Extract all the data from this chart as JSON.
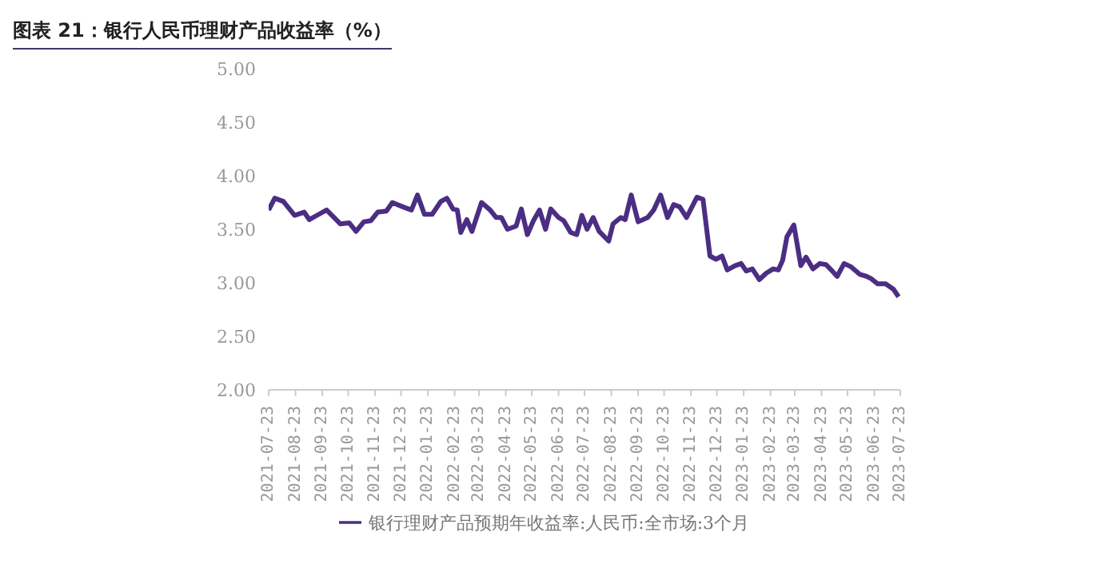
{
  "chart_data": {
    "type": "line",
    "title": "图表 21：银行人民币理财产品收益率（%）",
    "x": [
      "2021-07-23",
      "2021-07-30",
      "2021-08-09",
      "2021-08-22",
      "2021-09-02",
      "2021-09-08",
      "2021-09-19",
      "2021-09-28",
      "2021-10-14",
      "2021-10-24",
      "2021-11-01",
      "2021-11-10",
      "2021-11-18",
      "2021-11-26",
      "2021-12-06",
      "2021-12-13",
      "2021-12-25",
      "2022-01-04",
      "2022-01-11",
      "2022-01-19",
      "2022-01-28",
      "2022-02-07",
      "2022-02-14",
      "2022-02-21",
      "2022-02-26",
      "2022-03-02",
      "2022-03-09",
      "2022-03-15",
      "2022-03-26",
      "2022-04-05",
      "2022-04-12",
      "2022-04-18",
      "2022-04-25",
      "2022-05-05",
      "2022-05-11",
      "2022-05-18",
      "2022-05-25",
      "2022-06-01",
      "2022-06-08",
      "2022-06-14",
      "2022-06-23",
      "2022-06-29",
      "2022-07-07",
      "2022-07-14",
      "2022-07-20",
      "2022-07-26",
      "2022-08-02",
      "2022-08-09",
      "2022-08-20",
      "2022-08-25",
      "2022-09-03",
      "2022-09-08",
      "2022-09-15",
      "2022-09-23",
      "2022-10-04",
      "2022-10-11",
      "2022-10-19",
      "2022-10-27",
      "2022-11-03",
      "2022-11-10",
      "2022-11-18",
      "2022-11-30",
      "2022-12-07",
      "2022-12-15",
      "2022-12-22",
      "2022-12-29",
      "2023-01-04",
      "2023-01-13",
      "2023-01-20",
      "2023-01-26",
      "2023-02-02",
      "2023-02-10",
      "2023-02-18",
      "2023-02-26",
      "2023-03-04",
      "2023-03-09",
      "2023-03-14",
      "2023-03-22",
      "2023-03-30",
      "2023-04-05",
      "2023-04-13",
      "2023-04-21",
      "2023-04-28",
      "2023-05-03",
      "2023-05-11",
      "2023-05-19",
      "2023-05-27",
      "2023-06-06",
      "2023-06-14",
      "2023-06-19",
      "2023-06-27",
      "2023-07-06",
      "2023-07-15",
      "2023-07-21"
    ],
    "series": [
      {
        "name": "银行理财产品预期年收益率:人民币:全市场:3个月",
        "color": "#4b2e83",
        "values": [
          3.68,
          3.79,
          3.76,
          3.63,
          3.66,
          3.59,
          3.64,
          3.68,
          3.55,
          3.56,
          3.48,
          3.57,
          3.58,
          3.66,
          3.67,
          3.75,
          3.71,
          3.68,
          3.82,
          3.64,
          3.64,
          3.76,
          3.79,
          3.69,
          3.68,
          3.47,
          3.59,
          3.48,
          3.75,
          3.68,
          3.61,
          3.61,
          3.5,
          3.53,
          3.69,
          3.45,
          3.58,
          3.68,
          3.5,
          3.69,
          3.61,
          3.58,
          3.47,
          3.45,
          3.63,
          3.5,
          3.61,
          3.48,
          3.39,
          3.55,
          3.61,
          3.59,
          3.82,
          3.57,
          3.61,
          3.68,
          3.82,
          3.61,
          3.73,
          3.71,
          3.61,
          3.8,
          3.78,
          3.25,
          3.22,
          3.25,
          3.12,
          3.16,
          3.18,
          3.11,
          3.13,
          3.03,
          3.09,
          3.13,
          3.12,
          3.21,
          3.43,
          3.54,
          3.16,
          3.24,
          3.13,
          3.18,
          3.17,
          3.13,
          3.06,
          3.18,
          3.15,
          3.08,
          3.06,
          3.04,
          2.99,
          2.99,
          2.94,
          2.87
        ]
      }
    ],
    "xlim": [
      "2021-07-23",
      "2023-07-23"
    ],
    "xticks": [
      "2021-07-23",
      "2021-08-23",
      "2021-09-23",
      "2021-10-23",
      "2021-11-23",
      "2021-12-23",
      "2022-01-23",
      "2022-02-23",
      "2022-03-23",
      "2022-04-23",
      "2022-05-23",
      "2022-06-23",
      "2022-07-23",
      "2022-08-23",
      "2022-09-23",
      "2022-10-23",
      "2022-11-23",
      "2022-12-23",
      "2023-01-23",
      "2023-02-23",
      "2023-03-23",
      "2023-04-23",
      "2023-05-23",
      "2023-06-23",
      "2023-07-23"
    ],
    "ylim": [
      2,
      5
    ],
    "yticks": [
      {
        "value": 2,
        "label": "2.00"
      },
      {
        "value": 2.5,
        "label": "2.50"
      },
      {
        "value": 3,
        "label": "3.00"
      },
      {
        "value": 3.5,
        "label": "3.50"
      },
      {
        "value": 4,
        "label": "4.00"
      },
      {
        "value": 4.5,
        "label": "4.50"
      },
      {
        "value": 5,
        "label": "5.00"
      }
    ],
    "grid": false,
    "legend": "bottom",
    "marker": "none",
    "line_style": "solid"
  }
}
